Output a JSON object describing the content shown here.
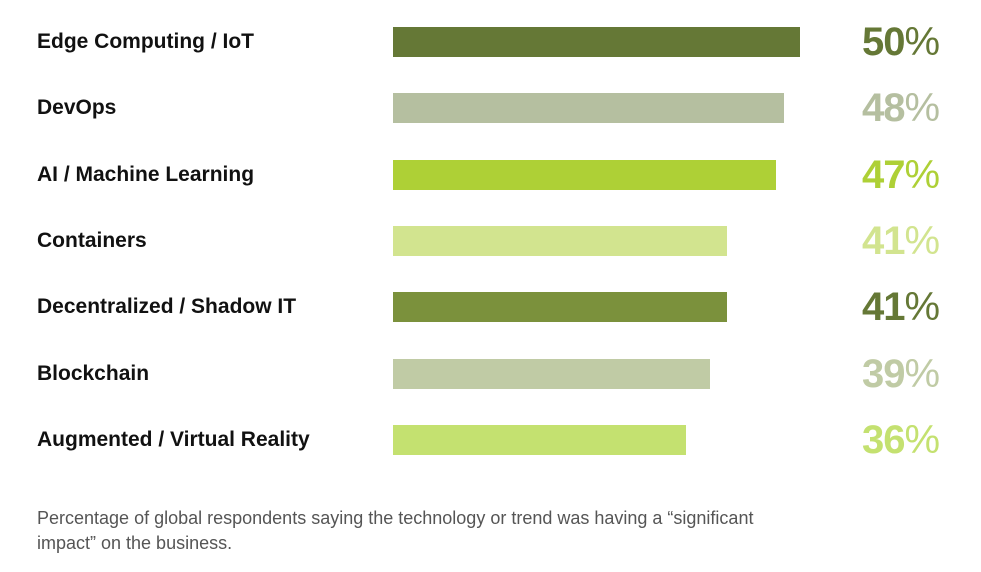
{
  "chart_data": {
    "type": "bar",
    "orientation": "horizontal",
    "categories": [
      "Edge Computing / IoT",
      "DevOps",
      "AI / Machine Learning",
      "Containers",
      "Decentralized / Shadow IT",
      "Blockchain",
      "Augmented / Virtual Reality"
    ],
    "values": [
      50,
      48,
      47,
      41,
      41,
      39,
      36
    ],
    "value_suffix": "%",
    "bar_colors": [
      "#657836",
      "#b5bfa0",
      "#aed036",
      "#d2e48f",
      "#7b913c",
      "#c0cba5",
      "#c4e170"
    ],
    "value_colors": [
      "#657836",
      "#b5bfa0",
      "#aed036",
      "#d2e48f",
      "#657836",
      "#c0cba5",
      "#c4e170"
    ],
    "title": "",
    "xlabel": "",
    "ylabel": "",
    "xlim": [
      0,
      50
    ],
    "grid": false,
    "legend": "none"
  },
  "caption": "Percentage of global respondents saying the technology or trend was having a “significant impact” on the business."
}
